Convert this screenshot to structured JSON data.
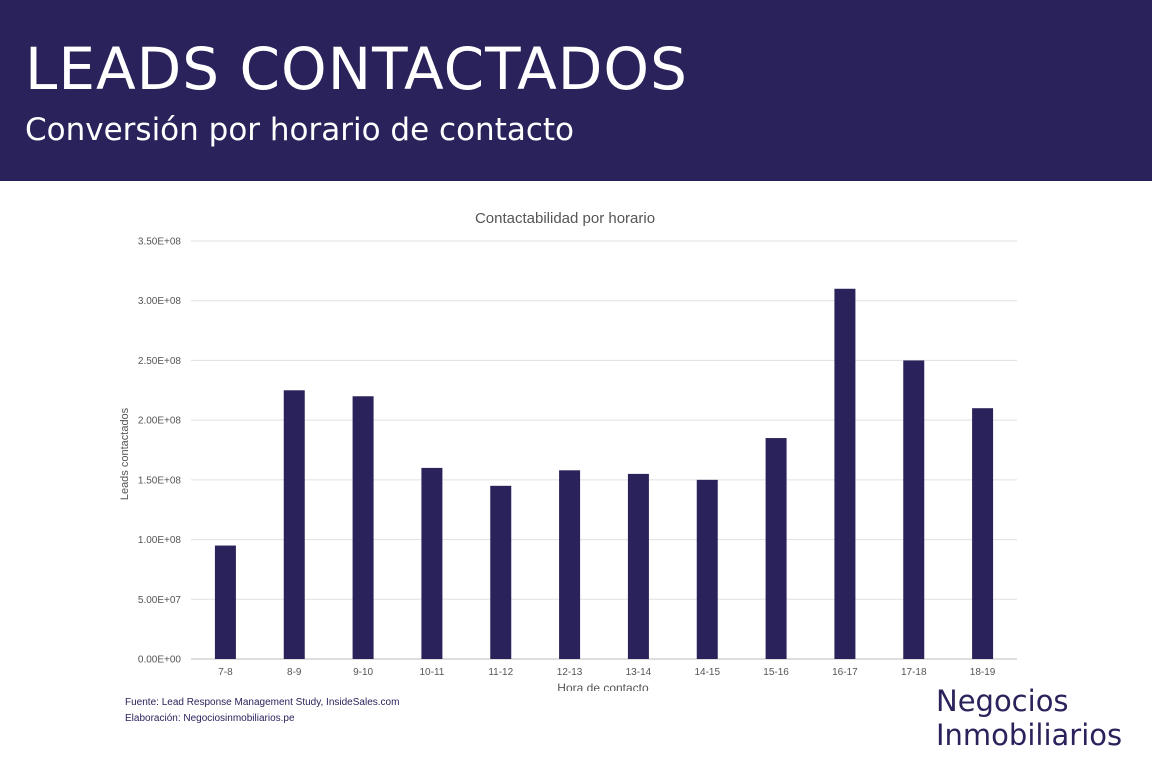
{
  "header": {
    "title": "LEADS CONTACTADOS",
    "subtitle": "Conversión por horario de contacto"
  },
  "chart_data": {
    "type": "bar",
    "title": "Contactabilidad por horario",
    "xlabel": "Hora de contacto",
    "ylabel": "Leads contactados",
    "categories": [
      "7-8",
      "8-9",
      "9-10",
      "10-11",
      "11-12",
      "12-13",
      "13-14",
      "14-15",
      "15-16",
      "16-17",
      "17-18",
      "18-19"
    ],
    "values": [
      95000000,
      225000000,
      220000000,
      160000000,
      145000000,
      158000000,
      155000000,
      150000000,
      185000000,
      310000000,
      250000000,
      210000000
    ],
    "ylim": [
      0,
      350000000
    ],
    "yticks": [
      0,
      50000000,
      100000000,
      150000000,
      200000000,
      250000000,
      300000000,
      350000000
    ],
    "ytick_labels": [
      "0.00E+00",
      "5.00E+07",
      "1.00E+08",
      "1.50E+08",
      "2.00E+08",
      "2.50E+08",
      "3.00E+08",
      "3.50E+08"
    ],
    "grid": true,
    "bar_color": "#2a235b"
  },
  "footer": {
    "source": "Fuente: Lead Response Management Study, InsideSales.com",
    "elaboration": "Elaboración: Negociosinmobiliarios.pe"
  },
  "brand": {
    "line1": "Negocios",
    "line2": "Inmobiliarios"
  }
}
